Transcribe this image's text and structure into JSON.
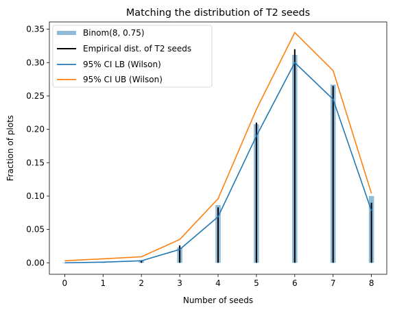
{
  "chart_data": {
    "type": "line",
    "title": "Matching the distribution of T2 seeds",
    "xlabel": "Number of seeds",
    "ylabel": "Fraction of plots",
    "xlim": [
      -0.4,
      8.4
    ],
    "ylim": [
      -0.0172,
      0.3609
    ],
    "x_ticks": [
      0,
      1,
      2,
      3,
      4,
      5,
      6,
      7,
      8
    ],
    "y_ticks": [
      0.0,
      0.05,
      0.1,
      0.15,
      0.2,
      0.25,
      0.3,
      0.35
    ],
    "y_tick_labels": [
      "0.00",
      "0.05",
      "0.10",
      "0.15",
      "0.20",
      "0.25",
      "0.30",
      "0.35"
    ],
    "x": [
      0,
      1,
      2,
      3,
      4,
      5,
      6,
      7,
      8
    ],
    "series": [
      {
        "name": "Binom(8, 0.75)",
        "kind": "bar",
        "color": "#1f77b4",
        "opacity": 0.5,
        "values": [
          1.53e-05,
          0.000366,
          0.00385,
          0.0231,
          0.0865,
          0.2076,
          0.3115,
          0.267,
          0.1001
        ]
      },
      {
        "name": "Empirical dist. of T2 seeds",
        "kind": "stem",
        "color": "#000000",
        "values": [
          0.0,
          0.0,
          0.004,
          0.026,
          0.083,
          0.21,
          0.32,
          0.265,
          0.09
        ]
      },
      {
        "name": "95% CI LB (Wilson)",
        "kind": "line",
        "color": "#1f77b4",
        "values": [
          0.0,
          0.001,
          0.003,
          0.02,
          0.069,
          0.19,
          0.3,
          0.245,
          0.078
        ]
      },
      {
        "name": "95% CI UB (Wilson)",
        "kind": "line",
        "color": "#ff7f0e",
        "values": [
          0.003,
          0.006,
          0.009,
          0.035,
          0.096,
          0.23,
          0.345,
          0.288,
          0.104
        ]
      }
    ],
    "grid": false,
    "legend_position": "top-left"
  }
}
